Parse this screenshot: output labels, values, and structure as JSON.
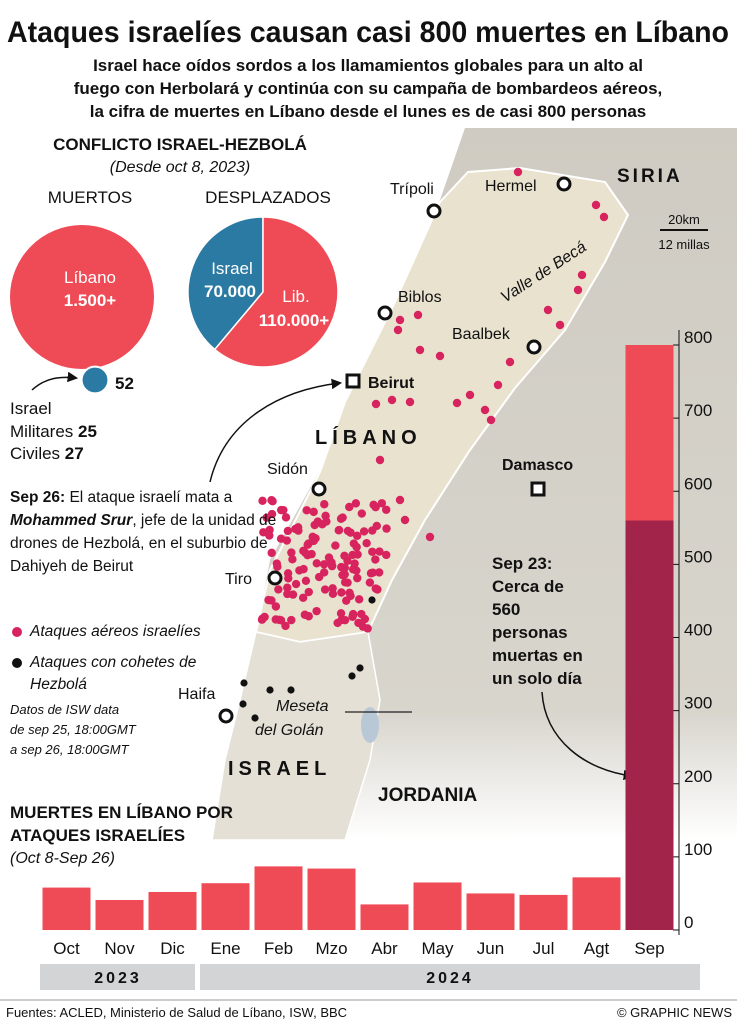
{
  "header": {
    "title": "Ataques israelíes causan casi 800 muertes en Líbano",
    "subtitle_lines": [
      "Israel hace oídos sordos a los llamamientos globales para un alto al",
      "fuego con Herbolará y continúa con su campaña de bombardeos aéreos,",
      "la cifra de muertes en Líbano desde el lunes es de casi 800 personas"
    ]
  },
  "conflict": {
    "title": "CONFLICTO ISRAEL-HEZBOLÁ",
    "subtitle": "(Desde oct 8, 2023)",
    "israel_breakdown": [
      {
        "label": "Militares",
        "value": 25
      },
      {
        "label": "Civiles",
        "value": 27
      }
    ]
  },
  "chart_data": [
    {
      "type": "bubble",
      "title": "MUERTOS",
      "categories": [
        "Líbano",
        "Israel"
      ],
      "values": [
        1500,
        52
      ],
      "value_labels": [
        "1.500+",
        "52"
      ],
      "colors": [
        "#ef4b56",
        "#2a7aa3"
      ]
    },
    {
      "type": "pie",
      "title": "DESPLAZADOS",
      "categories": [
        "Israel",
        "Lib."
      ],
      "values": [
        70000,
        110000
      ],
      "value_labels": [
        "70.000",
        "110.000+"
      ],
      "colors": [
        "#2a7aa3",
        "#ef4b56"
      ]
    },
    {
      "type": "bar",
      "title": "MUERTES EN LÍBANO POR ATAQUES ISRAELÍES",
      "subtitle": "(Oct 8-Sep 26)",
      "categories": [
        "Oct",
        "Nov",
        "Dic",
        "Ene",
        "Feb",
        "Mzo",
        "Abr",
        "May",
        "Jun",
        "Jul",
        "Agt",
        "Sep"
      ],
      "series": [
        {
          "color": "#a3244a",
          "values": [
            null,
            null,
            null,
            null,
            null,
            null,
            null,
            null,
            null,
            null,
            null,
            560
          ]
        },
        {
          "color": "#ef4b56",
          "values": [
            58,
            41,
            52,
            64,
            87,
            84,
            35,
            65,
            50,
            48,
            72,
            240
          ]
        }
      ],
      "ylim": [
        0,
        800
      ],
      "yticks": [
        0,
        100,
        200,
        300,
        400,
        500,
        600,
        700,
        800
      ],
      "years": [
        "2023",
        "2024"
      ],
      "annotation": "Sep 23: Cerca de 560 personas muertas en un solo día"
    }
  ],
  "map": {
    "labels": [
      "Trípoli",
      "Hermel",
      "SIRIA",
      "Valle de Becá",
      "Biblos",
      "Baalbek",
      "Beirut",
      "LÍBANO",
      "Damasco",
      "Sidón",
      "Tiro",
      "Haifa",
      "Meseta",
      "del Golán",
      "ISRAEL",
      "JORDANIA"
    ],
    "scale": [
      "20km",
      "12 millas"
    ],
    "annotation": [
      "Sep 26:",
      "El ataque israelí mata a",
      "Mohammed Srur",
      ", jefe de la unidad de drones de Hezbolá, en el suburbio de Dahiyeh de Beirut"
    ],
    "legend": [
      "Ataques aéreos israelíes",
      "Ataques con cohetes de Hezbolá"
    ],
    "note_lines": [
      "Datos de ISW data",
      "de sep 25, 18:00GMT",
      "a sep 26, 18:00GMT"
    ]
  },
  "footer": {
    "sources": "Fuentes: ACLED, Ministerio de Salud de Líbano, ISW, BBC",
    "credit": "© GRAPHIC NEWS"
  }
}
